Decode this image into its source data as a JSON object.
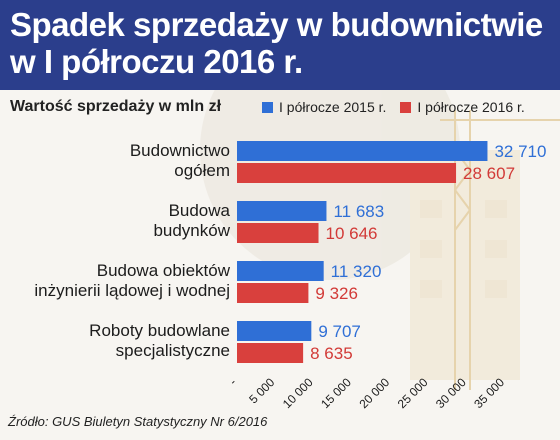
{
  "title": "Spadek sprzedaży w budownictwie w I półroczu 2016 r.",
  "source": "Źródło: GUS Biuletyn Statystyczny Nr 6/2016",
  "chart_data": {
    "type": "bar",
    "orientation": "horizontal",
    "title": "Spadek sprzedaży w budownictwie w I półroczu 2016 r.",
    "subtitle": "Wartość sprzedaży w mln zł",
    "categories": [
      [
        "Budownictwo",
        "ogółem"
      ],
      [
        "Budowa",
        "budynków"
      ],
      [
        "Budowa obiektów",
        "inżynierii lądowej i wodnej"
      ],
      [
        "Roboty budowlane",
        "specjalistyczne"
      ]
    ],
    "series": [
      {
        "name": "I półrocze 2015 r.",
        "color": "#2f6fd6",
        "label_color": "#2f6fd6",
        "values": [
          32710,
          11683,
          11320,
          9707
        ],
        "labels": [
          "32 710",
          "11 683",
          "11 320",
          "9 707"
        ]
      },
      {
        "name": "I półrocze 2016 r.",
        "color": "#d9403d",
        "label_color": "#d23a37",
        "values": [
          28607,
          10646,
          9326,
          8635
        ],
        "labels": [
          "28 607",
          "10 646",
          "9 326",
          "8 635"
        ]
      }
    ],
    "xlim": [
      0,
      35000
    ],
    "xticks": [
      0,
      5000,
      10000,
      15000,
      20000,
      25000,
      30000,
      35000
    ],
    "xtick_labels": [
      "-",
      "5 000",
      "10 000",
      "15 000",
      "20 000",
      "25 000",
      "30 000",
      "35 000"
    ],
    "grid": false,
    "legend": "top"
  }
}
